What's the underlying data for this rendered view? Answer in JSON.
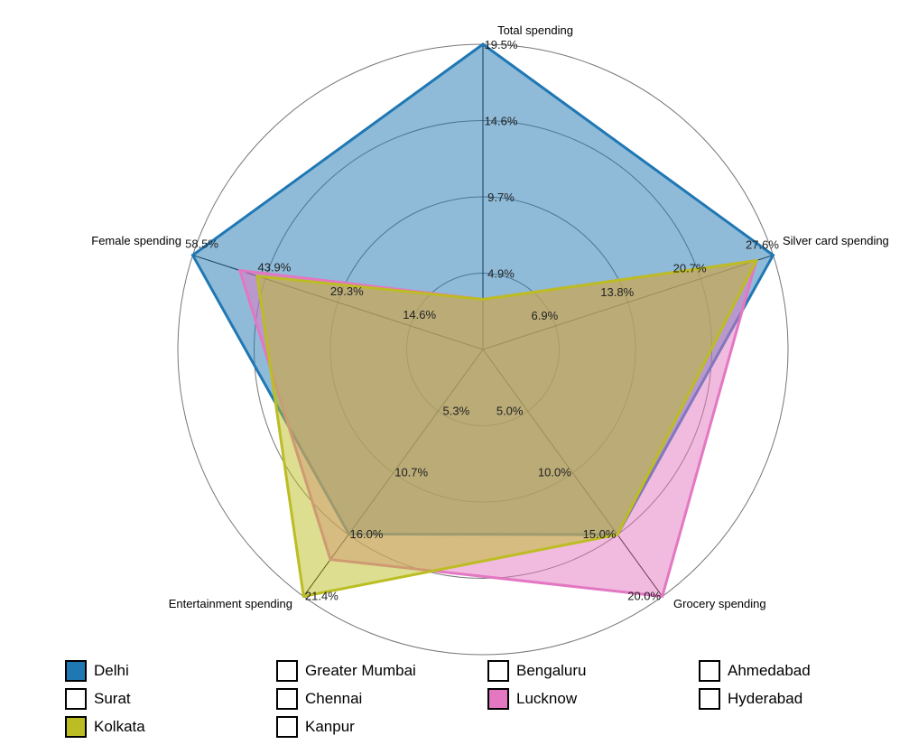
{
  "chart_data": {
    "type": "radar",
    "axes": [
      "Total spending",
      "Silver card spending",
      "Grocery spending",
      "Entertainment spending",
      "Female spending"
    ],
    "axis_max": [
      19.5,
      27.6,
      20.0,
      21.4,
      58.5
    ],
    "tick_labels": [
      [
        "4.9%",
        "9.7%",
        "14.6%",
        "19.5%"
      ],
      [
        "6.9%",
        "13.8%",
        "20.7%",
        "27.6%"
      ],
      [
        "5.0%",
        "10.0%",
        "15.0%",
        "20.0%"
      ],
      [
        "5.3%",
        "10.7%",
        "16.0%",
        "21.4%"
      ],
      [
        "14.6%",
        "29.3%",
        "43.9%",
        "58.5%"
      ]
    ],
    "series": [
      {
        "name": "Delhi",
        "color": "#1f77b4",
        "values": [
          19.5,
          27.6,
          15.0,
          16.0,
          58.5
        ]
      },
      {
        "name": "Lucknow",
        "color": "#e377c2",
        "values": [
          3.2,
          26.0,
          20.0,
          18.2,
          49.0
        ]
      },
      {
        "name": "Kolkata",
        "color": "#bcbd22",
        "values": [
          3.2,
          26.0,
          15.0,
          21.4,
          45.5
        ]
      }
    ]
  },
  "legend": [
    {
      "name": "Delhi",
      "color": "#1f77b4",
      "filled": true
    },
    {
      "name": "Surat",
      "color": "#ffffff",
      "filled": false
    },
    {
      "name": "Kolkata",
      "color": "#bcbd22",
      "filled": true
    },
    {
      "name": "Greater Mumbai",
      "color": "#ffffff",
      "filled": false
    },
    {
      "name": "Chennai",
      "color": "#ffffff",
      "filled": false
    },
    {
      "name": "Kanpur",
      "color": "#ffffff",
      "filled": false
    },
    {
      "name": "Bengaluru",
      "color": "#ffffff",
      "filled": false
    },
    {
      "name": "Lucknow",
      "color": "#e377c2",
      "filled": true
    },
    {
      "name": "Ahmedabad",
      "color": "#ffffff",
      "filled": false
    },
    {
      "name": "Hyderabad",
      "color": "#ffffff",
      "filled": false
    }
  ]
}
